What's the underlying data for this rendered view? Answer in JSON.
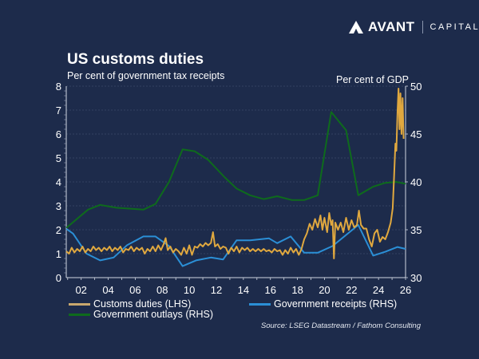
{
  "brand": {
    "name_bold": "AVANT",
    "name_light": "CAPITAL"
  },
  "title": "US customs duties",
  "subtitle": "Per cent of government tax receipts",
  "right_axis_label": "Per cent of GDP",
  "source": "Source: LSEG Datastream / Fathom Consulting",
  "colors": {
    "background": "#1d2b4b",
    "customs": "#e0a83f",
    "receipts": "#2b8fd6",
    "outlays": "#0e6b1c"
  },
  "chart_data": {
    "type": "line",
    "title": "US customs duties",
    "xlim": [
      2000.9,
      2026
    ],
    "x_ticks": [
      "02",
      "04",
      "06",
      "08",
      "10",
      "12",
      "14",
      "16",
      "18",
      "20",
      "22",
      "24",
      "26"
    ],
    "x_tick_years": [
      2002,
      2004,
      2006,
      2008,
      2010,
      2012,
      2014,
      2016,
      2018,
      2020,
      2022,
      2024,
      2026
    ],
    "ylim_left": [
      0,
      8
    ],
    "y_ticks_left": [
      "0",
      "1",
      "2",
      "3",
      "4",
      "5",
      "6",
      "7",
      "8"
    ],
    "ylim_right": [
      30,
      50
    ],
    "y_ticks_right": [
      "30",
      "35",
      "40",
      "45",
      "50"
    ],
    "ylabel_left": "Per cent of government tax receipts",
    "ylabel_right": "Per cent of GDP",
    "grid": true,
    "legend_placement": "bottom",
    "series": [
      {
        "name": "Customs duties (LHS)",
        "axis": "left",
        "color": "#e0a83f",
        "points": [
          [
            2000.9,
            1.1
          ],
          [
            2001.1,
            1.0
          ],
          [
            2001.3,
            1.25
          ],
          [
            2001.5,
            1.05
          ],
          [
            2001.7,
            1.2
          ],
          [
            2001.9,
            1.1
          ],
          [
            2002.1,
            1.3
          ],
          [
            2002.3,
            1.05
          ],
          [
            2002.5,
            1.2
          ],
          [
            2002.7,
            1.1
          ],
          [
            2002.9,
            1.3
          ],
          [
            2003.1,
            1.15
          ],
          [
            2003.3,
            1.25
          ],
          [
            2003.5,
            1.1
          ],
          [
            2003.7,
            1.25
          ],
          [
            2003.9,
            1.15
          ],
          [
            2004.1,
            1.3
          ],
          [
            2004.3,
            1.1
          ],
          [
            2004.5,
            1.25
          ],
          [
            2004.7,
            1.15
          ],
          [
            2004.9,
            1.3
          ],
          [
            2005.1,
            1.05
          ],
          [
            2005.3,
            1.2
          ],
          [
            2005.5,
            1.15
          ],
          [
            2005.7,
            1.3
          ],
          [
            2005.9,
            1.1
          ],
          [
            2006.1,
            1.25
          ],
          [
            2006.3,
            1.15
          ],
          [
            2006.5,
            1.25
          ],
          [
            2006.7,
            1.0
          ],
          [
            2006.9,
            1.2
          ],
          [
            2007.1,
            1.1
          ],
          [
            2007.3,
            1.3
          ],
          [
            2007.5,
            1.1
          ],
          [
            2007.7,
            1.35
          ],
          [
            2007.9,
            1.15
          ],
          [
            2008.1,
            1.4
          ],
          [
            2008.25,
            1.65
          ],
          [
            2008.4,
            1.15
          ],
          [
            2008.6,
            1.3
          ],
          [
            2008.8,
            1.05
          ],
          [
            2009.0,
            1.2
          ],
          [
            2009.2,
            1.1
          ],
          [
            2009.4,
            0.95
          ],
          [
            2009.6,
            1.25
          ],
          [
            2009.8,
            1.0
          ],
          [
            2010.0,
            1.35
          ],
          [
            2010.2,
            0.95
          ],
          [
            2010.4,
            1.3
          ],
          [
            2010.6,
            1.25
          ],
          [
            2010.8,
            1.4
          ],
          [
            2011.0,
            1.3
          ],
          [
            2011.2,
            1.45
          ],
          [
            2011.4,
            1.35
          ],
          [
            2011.6,
            1.45
          ],
          [
            2011.75,
            1.9
          ],
          [
            2011.9,
            1.3
          ],
          [
            2012.1,
            1.4
          ],
          [
            2012.3,
            1.2
          ],
          [
            2012.5,
            1.3
          ],
          [
            2012.7,
            1.25
          ],
          [
            2012.9,
            1.0
          ],
          [
            2013.1,
            1.25
          ],
          [
            2013.3,
            1.1
          ],
          [
            2013.5,
            1.3
          ],
          [
            2013.7,
            1.05
          ],
          [
            2013.9,
            1.25
          ],
          [
            2014.1,
            1.15
          ],
          [
            2014.3,
            1.25
          ],
          [
            2014.5,
            1.1
          ],
          [
            2014.7,
            1.2
          ],
          [
            2014.9,
            1.1
          ],
          [
            2015.1,
            1.2
          ],
          [
            2015.3,
            1.1
          ],
          [
            2015.5,
            1.2
          ],
          [
            2015.7,
            1.1
          ],
          [
            2015.9,
            1.15
          ],
          [
            2016.1,
            1.05
          ],
          [
            2016.3,
            1.2
          ],
          [
            2016.5,
            1.1
          ],
          [
            2016.7,
            1.15
          ],
          [
            2016.9,
            0.95
          ],
          [
            2017.1,
            1.15
          ],
          [
            2017.3,
            1.0
          ],
          [
            2017.5,
            1.25
          ],
          [
            2017.7,
            1.05
          ],
          [
            2017.9,
            1.2
          ],
          [
            2018.1,
            0.95
          ],
          [
            2018.3,
            1.2
          ],
          [
            2018.5,
            1.6
          ],
          [
            2018.7,
            1.85
          ],
          [
            2018.9,
            2.25
          ],
          [
            2019.1,
            2.0
          ],
          [
            2019.3,
            2.45
          ],
          [
            2019.5,
            2.1
          ],
          [
            2019.7,
            2.6
          ],
          [
            2019.85,
            2.0
          ],
          [
            2020.0,
            2.5
          ],
          [
            2020.2,
            1.9
          ],
          [
            2020.35,
            2.7
          ],
          [
            2020.5,
            2.2
          ],
          [
            2020.6,
            2.4
          ],
          [
            2020.7,
            0.8
          ],
          [
            2020.8,
            2.3
          ],
          [
            2021.0,
            2.0
          ],
          [
            2021.2,
            2.3
          ],
          [
            2021.4,
            1.9
          ],
          [
            2021.6,
            2.5
          ],
          [
            2021.8,
            2.0
          ],
          [
            2022.0,
            2.4
          ],
          [
            2022.2,
            2.1
          ],
          [
            2022.4,
            2.2
          ],
          [
            2022.55,
            2.8
          ],
          [
            2022.7,
            2.2
          ],
          [
            2022.9,
            2.05
          ],
          [
            2023.1,
            2.05
          ],
          [
            2023.3,
            1.6
          ],
          [
            2023.5,
            1.3
          ],
          [
            2023.7,
            1.85
          ],
          [
            2023.9,
            2.0
          ],
          [
            2024.1,
            1.5
          ],
          [
            2024.3,
            1.7
          ],
          [
            2024.5,
            1.6
          ],
          [
            2024.7,
            1.9
          ],
          [
            2024.9,
            2.3
          ],
          [
            2025.05,
            2.9
          ],
          [
            2025.15,
            4.2
          ],
          [
            2025.25,
            5.6
          ],
          [
            2025.32,
            5.3
          ],
          [
            2025.4,
            6.9
          ],
          [
            2025.48,
            7.9
          ],
          [
            2025.55,
            6.2
          ],
          [
            2025.62,
            7.7
          ],
          [
            2025.7,
            6.0
          ],
          [
            2025.78,
            7.5
          ],
          [
            2025.86,
            5.8
          ]
        ]
      },
      {
        "name": "Government receipts (RHS)",
        "axis": "right",
        "color": "#2b8fd6",
        "points": [
          [
            2000.9,
            35.1
          ],
          [
            2001.4,
            34.6
          ],
          [
            2002.4,
            32.5
          ],
          [
            2003.4,
            31.8
          ],
          [
            2004.4,
            32.1
          ],
          [
            2005.4,
            33.4
          ],
          [
            2006.6,
            34.3
          ],
          [
            2007.5,
            34.3
          ],
          [
            2008.5,
            33.3
          ],
          [
            2009.5,
            31.2
          ],
          [
            2010.5,
            31.8
          ],
          [
            2011.6,
            32.1
          ],
          [
            2012.5,
            31.9
          ],
          [
            2013.5,
            33.9
          ],
          [
            2014.5,
            33.9
          ],
          [
            2015.9,
            34.1
          ],
          [
            2016.5,
            33.6
          ],
          [
            2017.5,
            34.3
          ],
          [
            2018.5,
            32.6
          ],
          [
            2019.5,
            32.6
          ],
          [
            2020.6,
            33.3
          ],
          [
            2022.5,
            35.5
          ],
          [
            2023.6,
            32.3
          ],
          [
            2024.5,
            32.7
          ],
          [
            2025.4,
            33.2
          ],
          [
            2026.0,
            33.0
          ]
        ]
      },
      {
        "name": "Government outlays (RHS)",
        "axis": "right",
        "color": "#0e6b1c",
        "points": [
          [
            2000.9,
            35.2
          ],
          [
            2002.5,
            37.1
          ],
          [
            2003.4,
            37.6
          ],
          [
            2004.6,
            37.3
          ],
          [
            2006.6,
            37.1
          ],
          [
            2007.5,
            37.7
          ],
          [
            2008.5,
            40.0
          ],
          [
            2009.5,
            43.4
          ],
          [
            2010.4,
            43.2
          ],
          [
            2011.4,
            42.3
          ],
          [
            2012.6,
            40.5
          ],
          [
            2013.5,
            39.3
          ],
          [
            2014.5,
            38.6
          ],
          [
            2015.5,
            38.2
          ],
          [
            2016.5,
            38.5
          ],
          [
            2017.6,
            38.1
          ],
          [
            2018.5,
            38.1
          ],
          [
            2019.5,
            38.6
          ],
          [
            2020.5,
            47.3
          ],
          [
            2021.6,
            45.4
          ],
          [
            2022.5,
            38.6
          ],
          [
            2023.6,
            39.5
          ],
          [
            2024.5,
            39.9
          ],
          [
            2025.3,
            40.0
          ],
          [
            2026.0,
            39.8
          ]
        ]
      }
    ]
  },
  "legend": [
    {
      "label": "Customs duties (LHS)",
      "color": "#e0a83f"
    },
    {
      "label": "Government receipts (RHS)",
      "color": "#2b8fd6"
    },
    {
      "label": "Government outlays (RHS)",
      "color": "#0e6b1c"
    }
  ]
}
